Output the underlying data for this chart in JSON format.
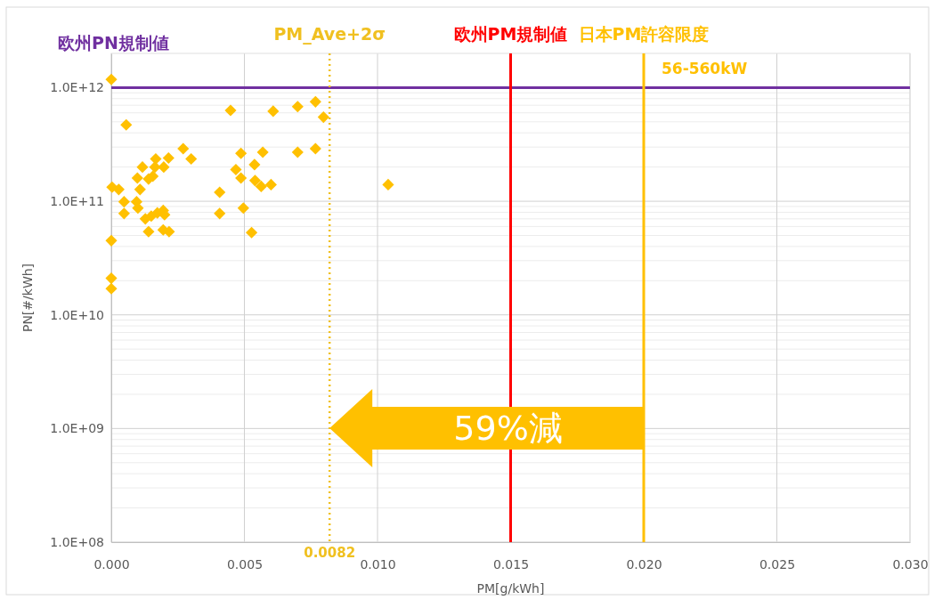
{
  "chart_data": {
    "type": "scatter",
    "xlabel": "PM[g/kWh]",
    "ylabel": "PN[#/kWh]",
    "log": "y",
    "grid": true,
    "marker": "diamond",
    "xlim": [
      0,
      0.03
    ],
    "ylim": [
      100000000.0,
      2000000000000.0
    ],
    "xticks": [
      {
        "value": 0,
        "label": "0.000"
      },
      {
        "value": 0.005,
        "label": "0.005"
      },
      {
        "value": 0.01,
        "label": "0.010"
      },
      {
        "value": 0.015,
        "label": "0.015"
      },
      {
        "value": 0.02,
        "label": "0.020"
      },
      {
        "value": 0.025,
        "label": "0.025"
      },
      {
        "value": 0.03,
        "label": "0.030"
      }
    ],
    "yticks": [
      {
        "value": 100000000.0,
        "label": "1.0E+08"
      },
      {
        "value": 1000000000.0,
        "label": "1.0E+09"
      },
      {
        "value": 10000000000.0,
        "label": "1.0E+10"
      },
      {
        "value": 100000000000.0,
        "label": "1.0E+11"
      },
      {
        "value": 1000000000000.0,
        "label": "1.0E+12"
      }
    ],
    "series": [
      {
        "color": "#ffc000",
        "x": [
          0,
          0.00056,
          3e-05,
          0.00028,
          0.00048,
          0.00048,
          0,
          0,
          0,
          0.00098,
          0.00117,
          0.00108,
          0.00095,
          0.001,
          0.00167,
          0.00164,
          0.0014,
          0.00156,
          0.00197,
          0.00215,
          0.0027,
          0.003,
          0.00128,
          0.0015,
          0.00173,
          0.00195,
          0.002,
          0.0014,
          0.00195,
          0.00217,
          0.00407,
          0.00407,
          0.00448,
          0.00487,
          0.00468,
          0.00487,
          0.00496,
          0.00527,
          0.00569,
          0.00538,
          0.0054,
          0.00563,
          0.00608,
          0.007,
          0.00767,
          0.00797,
          0.007,
          0.00767,
          0.006,
          0.0104
        ],
        "values": [
          1180000000000.0,
          470000000000.0,
          133000000000.0,
          127000000000.0,
          99000000000.0,
          78000000000.0,
          45000000000.0,
          21000000000.0,
          17000000000.0,
          160000000000.0,
          200000000000.0,
          127000000000.0,
          99000000000.0,
          87000000000.0,
          236000000000.0,
          200000000000.0,
          157000000000.0,
          166000000000.0,
          200000000000.0,
          240000000000.0,
          290000000000.0,
          236000000000.0,
          70000000000.0,
          74000000000.0,
          79000000000.0,
          83000000000.0,
          76000000000.0,
          54000000000.0,
          56000000000.0,
          54000000000.0,
          120000000000.0,
          78000000000.0,
          630000000000.0,
          264000000000.0,
          190000000000.0,
          160000000000.0,
          87000000000.0,
          53000000000.0,
          270000000000.0,
          210000000000.0,
          152000000000.0,
          135000000000.0,
          620000000000.0,
          680000000000.0,
          750000000000.0,
          550000000000.0,
          270000000000.0,
          290000000000.0,
          140000000000.0,
          140000000000.0
        ]
      }
    ],
    "ref_lines": [
      {
        "axis": "y",
        "value": 1000000000000.0,
        "label": "欧州PN規制値",
        "color": "#7030a0",
        "line_style": "solid"
      },
      {
        "axis": "x",
        "value": 0.0082,
        "label": "PM_Ave+2σ",
        "color": "#f0c020",
        "line_style": "dotted"
      },
      {
        "axis": "x",
        "value": 0.015,
        "label": "欧州PM規制値",
        "color": "#ff0000",
        "line_style": "solid"
      },
      {
        "axis": "x",
        "value": 0.02,
        "label": "日本PM許容限度",
        "color": "#ffc000",
        "line_style": "solid"
      }
    ],
    "annotations": [
      "0.0082",
      "56-560kW",
      "59%減"
    ]
  }
}
